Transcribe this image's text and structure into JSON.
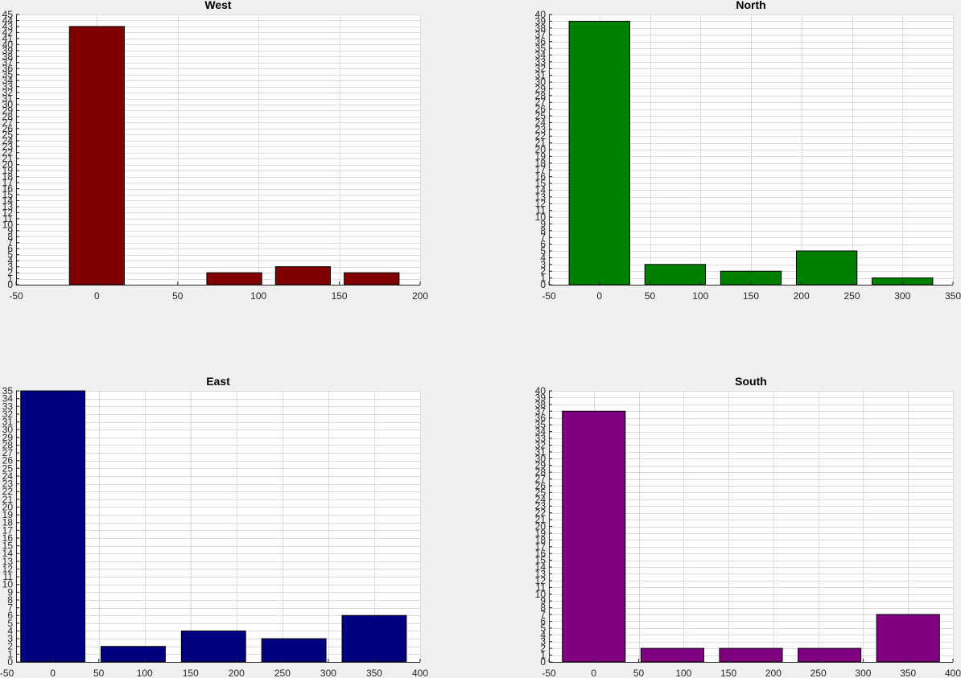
{
  "chart_data": [
    {
      "type": "bar",
      "title": "West",
      "x": [
        0,
        85,
        127.5,
        170
      ],
      "values": [
        43,
        2,
        3,
        2
      ],
      "bar_width": 34,
      "xlim": [
        -50,
        200
      ],
      "xticks": [
        -50,
        0,
        50,
        100,
        150,
        200
      ],
      "ylim": [
        0,
        45
      ],
      "ystep": 1,
      "grid": true,
      "color": "#800000"
    },
    {
      "type": "bar",
      "title": "North",
      "x": [
        0,
        75,
        150,
        225,
        300
      ],
      "values": [
        39,
        3,
        2,
        5,
        1
      ],
      "bar_width": 60,
      "xlim": [
        -50,
        350
      ],
      "xticks": [
        -50,
        0,
        50,
        100,
        150,
        200,
        250,
        300,
        350
      ],
      "ylim": [
        0,
        40
      ],
      "ystep": 1,
      "grid": true,
      "color": "#008000"
    },
    {
      "type": "bar",
      "title": "East",
      "x": [
        0,
        87.5,
        175,
        262.5,
        350
      ],
      "values": [
        35,
        2,
        4,
        3,
        6
      ],
      "bar_width": 70,
      "xlim": [
        -40,
        400
      ],
      "xticks": [
        -50,
        0,
        50,
        100,
        150,
        200,
        250,
        300,
        350,
        400
      ],
      "ylim": [
        0,
        35
      ],
      "ystep": 1,
      "grid": true,
      "color": "#000080"
    },
    {
      "type": "bar",
      "title": "South",
      "x": [
        0,
        87.5,
        175,
        262.5,
        350
      ],
      "values": [
        37,
        2,
        2,
        2,
        7
      ],
      "bar_width": 70,
      "xlim": [
        -50,
        400
      ],
      "xticks": [
        -50,
        0,
        50,
        100,
        150,
        200,
        250,
        300,
        350,
        400
      ],
      "ylim": [
        0,
        40
      ],
      "ystep": 1,
      "grid": true,
      "color": "#800080"
    }
  ]
}
